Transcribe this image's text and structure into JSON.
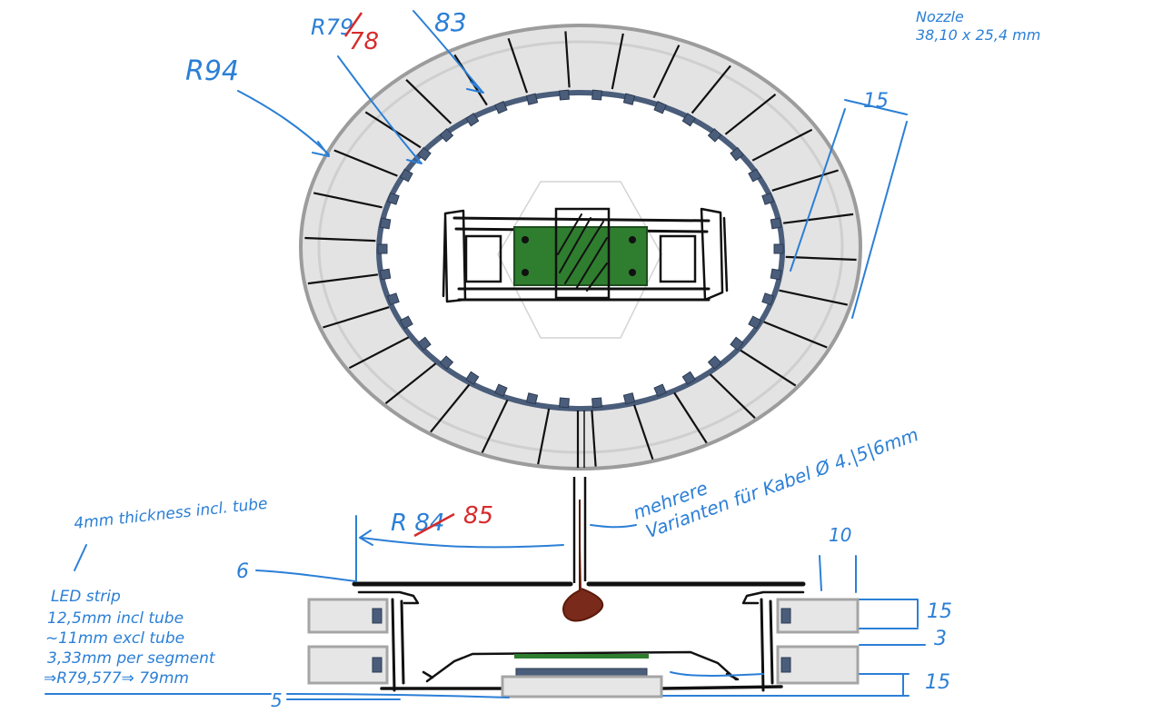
{
  "labels": {
    "r94": "R94",
    "r79_struck": "R79",
    "r78_red": "78",
    "d83": "83",
    "nozzle": "Nozzle\n38,10 x 25,4 mm",
    "d15_top": "15",
    "cable": "mehrere\nVarianten für Kabel Ø 4.|5|6mm",
    "thickness": "4mm thickness incl. tube",
    "r84_struck": "R 84",
    "r85_red": "85",
    "d6": "6",
    "d10": "10",
    "d15_a": "15",
    "d3": "3",
    "d15_b": "15",
    "d5": "5",
    "led_strip": "LED strip\n12,5mm incl tube\n~11mm excl tube\n3,33mm per segment\n⇒R79,577⇒ 79mm"
  },
  "colors": {
    "annotation_blue": "#2b7fd6",
    "correction_red": "#d62b2b",
    "pcb_green": "#2f7d2f",
    "cable_brown": "#7a2a1a",
    "led_blue": "#4a5d7a"
  }
}
